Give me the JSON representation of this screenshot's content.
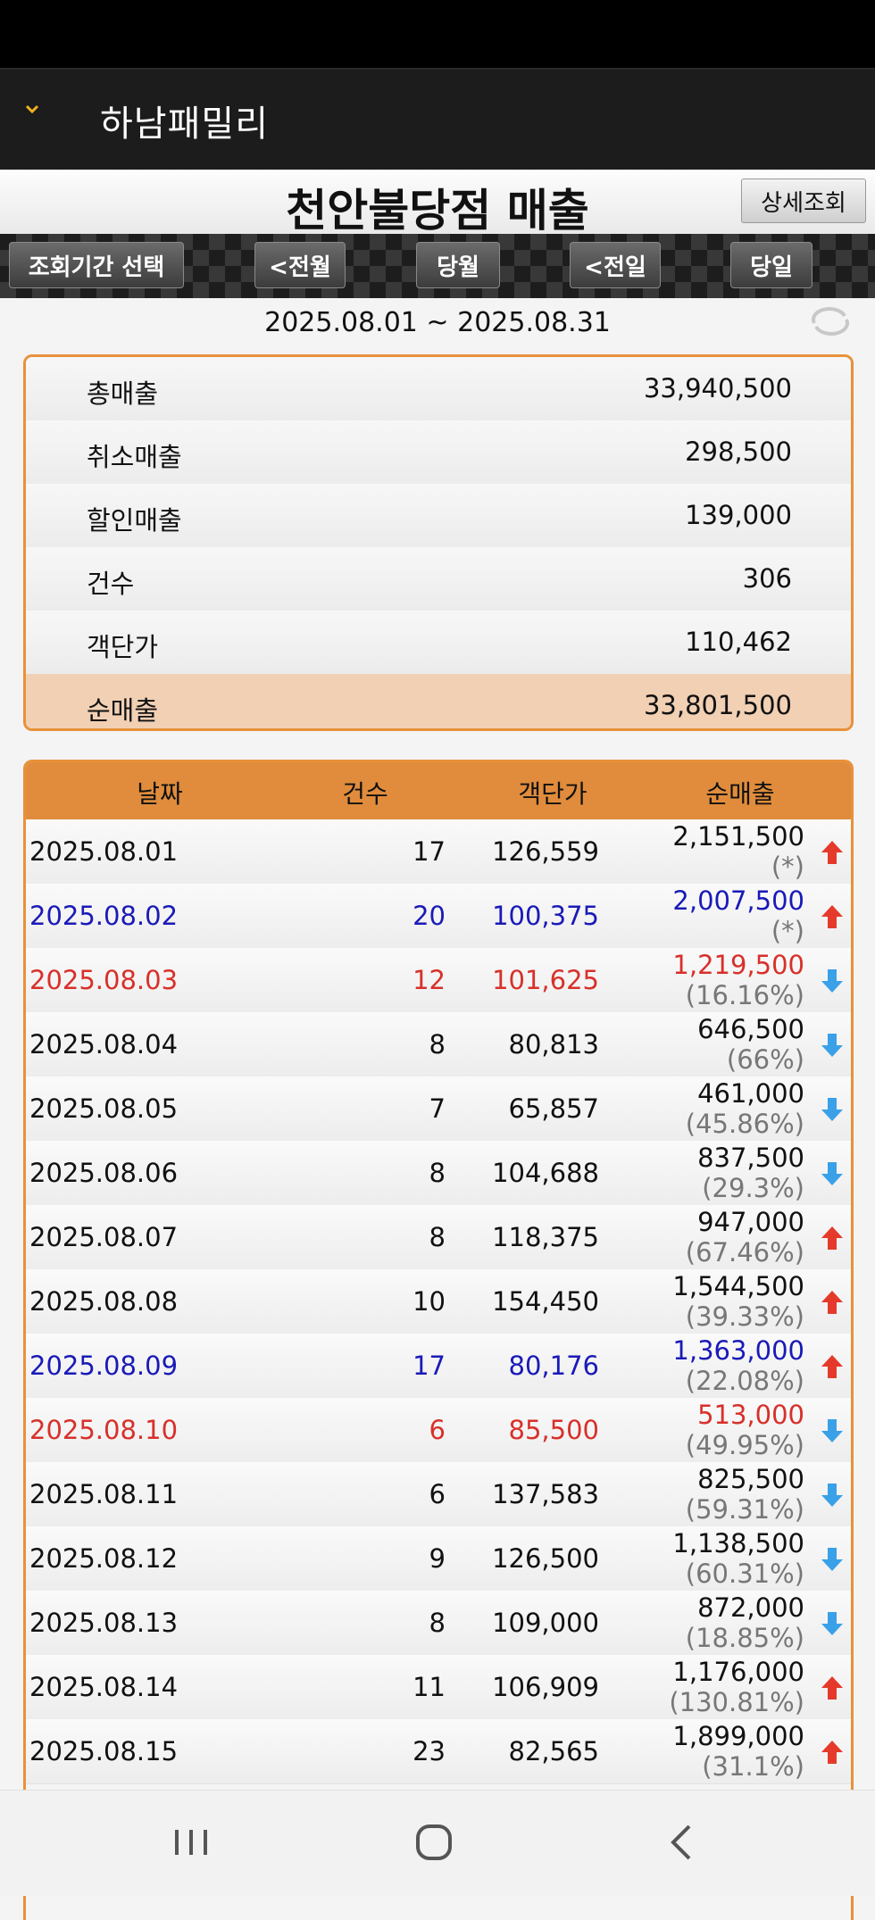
{
  "app": {
    "title": "하남패밀리"
  },
  "page": {
    "title": "천안불당점 매출",
    "detail_button": "상세조회"
  },
  "nav_buttons": [
    "조회기간 선택",
    "<전월",
    "당월",
    "<전일",
    "당일"
  ],
  "period": "2025.08.01 ~ 2025.08.31",
  "summary": [
    {
      "label": "총매출",
      "value": "33,940,500"
    },
    {
      "label": "취소매출",
      "value": "298,500"
    },
    {
      "label": "할인매출",
      "value": "139,000"
    },
    {
      "label": "건수",
      "value": "306"
    },
    {
      "label": "객단가",
      "value": "110,462"
    },
    {
      "label": "순매출",
      "value": "33,801,500"
    }
  ],
  "table": {
    "headers": [
      "날짜",
      "건수",
      "객단가",
      "순매출"
    ],
    "rows": [
      {
        "date": "2025.08.01",
        "count": "17",
        "avg": "126,559",
        "net": "2,151,500",
        "pct": "(*)",
        "trend": "up",
        "day": "weekday"
      },
      {
        "date": "2025.08.02",
        "count": "20",
        "avg": "100,375",
        "net": "2,007,500",
        "pct": "(*)",
        "trend": "up",
        "day": "saturday"
      },
      {
        "date": "2025.08.03",
        "count": "12",
        "avg": "101,625",
        "net": "1,219,500",
        "pct": "(16.16%)",
        "trend": "down",
        "day": "sunday"
      },
      {
        "date": "2025.08.04",
        "count": "8",
        "avg": "80,813",
        "net": "646,500",
        "pct": "(66%)",
        "trend": "down",
        "day": "weekday"
      },
      {
        "date": "2025.08.05",
        "count": "7",
        "avg": "65,857",
        "net": "461,000",
        "pct": "(45.86%)",
        "trend": "down",
        "day": "weekday"
      },
      {
        "date": "2025.08.06",
        "count": "8",
        "avg": "104,688",
        "net": "837,500",
        "pct": "(29.3%)",
        "trend": "down",
        "day": "weekday"
      },
      {
        "date": "2025.08.07",
        "count": "8",
        "avg": "118,375",
        "net": "947,000",
        "pct": "(67.46%)",
        "trend": "up",
        "day": "weekday"
      },
      {
        "date": "2025.08.08",
        "count": "10",
        "avg": "154,450",
        "net": "1,544,500",
        "pct": "(39.33%)",
        "trend": "up",
        "day": "weekday"
      },
      {
        "date": "2025.08.09",
        "count": "17",
        "avg": "80,176",
        "net": "1,363,000",
        "pct": "(22.08%)",
        "trend": "up",
        "day": "saturday"
      },
      {
        "date": "2025.08.10",
        "count": "6",
        "avg": "85,500",
        "net": "513,000",
        "pct": "(49.95%)",
        "trend": "down",
        "day": "sunday"
      },
      {
        "date": "2025.08.11",
        "count": "6",
        "avg": "137,583",
        "net": "825,500",
        "pct": "(59.31%)",
        "trend": "down",
        "day": "weekday"
      },
      {
        "date": "2025.08.12",
        "count": "9",
        "avg": "126,500",
        "net": "1,138,500",
        "pct": "(60.31%)",
        "trend": "down",
        "day": "weekday"
      },
      {
        "date": "2025.08.13",
        "count": "8",
        "avg": "109,000",
        "net": "872,000",
        "pct": "(18.85%)",
        "trend": "down",
        "day": "weekday"
      },
      {
        "date": "2025.08.14",
        "count": "11",
        "avg": "106,909",
        "net": "1,176,000",
        "pct": "(130.81%)",
        "trend": "up",
        "day": "weekday"
      },
      {
        "date": "2025.08.15",
        "count": "23",
        "avg": "82,565",
        "net": "1,899,000",
        "pct": "(31.1%)",
        "trend": "up",
        "day": "weekday"
      }
    ]
  },
  "icons": {
    "menu": "chevron-down-icon",
    "refresh": "refresh-icon",
    "up": "arrow-up-icon",
    "down": "arrow-down-icon"
  },
  "colors": {
    "accent": "#e08c3c",
    "saturday": "#1a1ab8",
    "sunday": "#d8302a",
    "up_arrow": "#e53a2b",
    "down_arrow": "#3aa0e8"
  }
}
